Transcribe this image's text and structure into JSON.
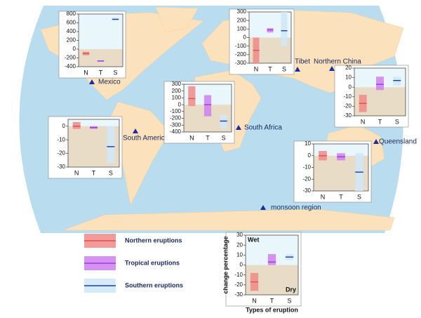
{
  "locations": [
    "Mexico",
    "South America",
    "South Africa",
    "Tibet",
    "Northern China",
    "Queensland",
    "monsoon region"
  ],
  "legend": [
    {
      "label": "Northern eruptions",
      "color": "#f08a86",
      "line": "#e0504c"
    },
    {
      "label": "Tropical eruptions",
      "color": "#cf7ff0",
      "line": "#9c3cd0"
    },
    {
      "label": "Southern eruptions",
      "color": "#cfe8f8",
      "line": "#1c3c9c"
    }
  ],
  "chart_data": [
    {
      "type": "range",
      "categories": [
        "N",
        "T",
        "S"
      ],
      "ylim": [
        -400,
        800
      ],
      "yticks": [
        -400,
        -200,
        0,
        200,
        400,
        600,
        800
      ],
      "low": [
        -140,
        -285,
        650
      ],
      "high": [
        -60,
        -255,
        720
      ],
      "median": [
        -100,
        -270,
        680
      ]
    },
    {
      "type": "range",
      "categories": [
        "N",
        "T",
        "S"
      ],
      "ylim": [
        -300,
        300
      ],
      "yticks": [
        -300,
        -200,
        -100,
        0,
        100,
        200,
        300
      ],
      "low": [
        -300,
        60,
        -100
      ],
      "high": [
        0,
        110,
        300
      ],
      "median": [
        -150,
        90,
        80
      ]
    },
    {
      "type": "range",
      "categories": [
        "N",
        "T",
        "S"
      ],
      "ylim": [
        -400,
        300
      ],
      "yticks": [
        -400,
        -300,
        -200,
        -100,
        0,
        100,
        200,
        300
      ],
      "low": [
        -20,
        -170,
        -350
      ],
      "high": [
        270,
        140,
        -150
      ],
      "median": [
        90,
        0,
        -240
      ]
    },
    {
      "type": "range",
      "categories": [
        "N",
        "T",
        "S"
      ],
      "ylim": [
        -30,
        20
      ],
      "yticks": [
        -30,
        -20,
        -10,
        0,
        10,
        20
      ],
      "low": [
        -26,
        -3,
        2
      ],
      "high": [
        -8,
        11,
        11
      ],
      "median": [
        -17,
        3,
        7
      ]
    },
    {
      "type": "range",
      "categories": [
        "N",
        "T",
        "S"
      ],
      "ylim": [
        -30,
        5
      ],
      "yticks": [
        -30,
        -20,
        -10,
        0
      ],
      "low": [
        -2,
        -2,
        -27
      ],
      "high": [
        3,
        0,
        0
      ],
      "median": [
        0,
        -1,
        -15
      ]
    },
    {
      "type": "range",
      "categories": [
        "N",
        "T",
        "S"
      ],
      "ylim": [
        -30,
        10
      ],
      "yticks": [
        -30,
        -20,
        -10,
        0,
        10
      ],
      "low": [
        -4,
        -4,
        -30
      ],
      "high": [
        4,
        2,
        2
      ],
      "median": [
        0,
        -1,
        -14
      ]
    },
    {
      "type": "range",
      "categories": [
        "N",
        "T",
        "S"
      ],
      "ylim": [
        -30,
        30
      ],
      "yticks": [
        -30,
        -20,
        -10,
        0,
        10,
        20,
        30
      ],
      "low": [
        -26,
        0,
        5
      ],
      "high": [
        -8,
        11,
        11
      ],
      "median": [
        -17,
        3,
        8
      ],
      "wet_label": "Wet",
      "dry_label": "Dry",
      "y_label": "change percentage",
      "x_label": "Types of eruption"
    }
  ]
}
